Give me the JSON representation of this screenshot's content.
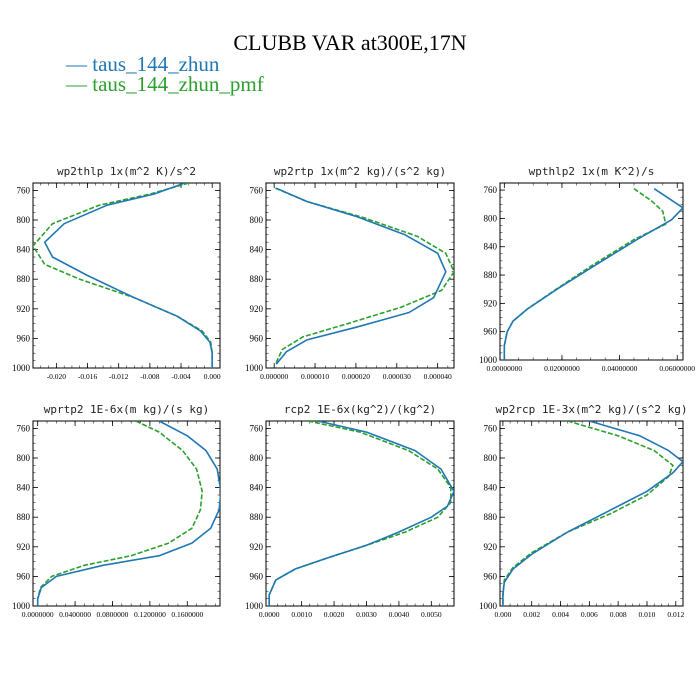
{
  "title": "CLUBB VAR at300E,17N",
  "legend": [
    {
      "label": "— taus_144_zhun",
      "color": "#1f77b4"
    },
    {
      "label": "— taus_144_zhun_pmf",
      "color": "#2ca02c"
    }
  ],
  "colors": {
    "series1": "#1f77b4",
    "series2": "#2ca02c"
  },
  "chart_data": [
    {
      "type": "line",
      "title": "wp2thlp  1x(m^2 K)/s^2",
      "xlim": [
        -0.023,
        0.001
      ],
      "ylim": [
        750,
        1000
      ],
      "y_inverted": true,
      "xticks": [
        -0.02,
        -0.016,
        -0.012,
        -0.008,
        -0.004,
        0.0
      ],
      "xtick_labels": [
        "-0.020",
        "-0.016",
        "-0.012",
        "-0.008",
        "-0.004",
        "0.000"
      ],
      "yticks": [
        760,
        800,
        840,
        880,
        920,
        960,
        1000
      ],
      "ytick_labels": [
        "760",
        "800",
        "840",
        "880",
        "920",
        "960",
        "1000"
      ],
      "series": [
        {
          "name": "taus_144_zhun",
          "style": "solid",
          "color": "#1f77b4",
          "points": [
            [
              -0.0035,
              750
            ],
            [
              -0.0075,
              765
            ],
            [
              -0.0135,
              780
            ],
            [
              -0.019,
              805
            ],
            [
              -0.0215,
              830
            ],
            [
              -0.0205,
              850
            ],
            [
              -0.016,
              875
            ],
            [
              -0.01,
              905
            ],
            [
              -0.0045,
              930
            ],
            [
              -0.0015,
              950
            ],
            [
              -0.0003,
              965
            ],
            [
              0.0,
              980
            ],
            [
              0.0,
              1000
            ]
          ]
        },
        {
          "name": "taus_144_zhun_pmf",
          "style": "dashed",
          "color": "#2ca02c",
          "points": [
            [
              -0.003,
              750
            ],
            [
              -0.008,
              765
            ],
            [
              -0.0145,
              780
            ],
            [
              -0.0205,
              805
            ],
            [
              -0.023,
              835
            ],
            [
              -0.0215,
              860
            ],
            [
              -0.017,
              880
            ],
            [
              -0.01,
              905
            ],
            [
              -0.0045,
              930
            ],
            [
              -0.0013,
              950
            ],
            [
              -0.0002,
              965
            ],
            [
              0.0,
              980
            ],
            [
              0.0,
              1000
            ]
          ]
        }
      ]
    },
    {
      "type": "line",
      "title": "wp2rtp  1x(m^2 kg)/(s^2 kg)",
      "xlim": [
        -2e-06,
        4.4e-05
      ],
      "ylim": [
        750,
        1000
      ],
      "y_inverted": true,
      "xticks": [
        0.0,
        1e-05,
        2e-05,
        3e-05,
        4e-05
      ],
      "xtick_labels": [
        "0.000000",
        "0.000010",
        "0.000020",
        "0.000030",
        "0.000040"
      ],
      "yticks": [
        760,
        800,
        840,
        880,
        920,
        960,
        1000
      ],
      "ytick_labels": [
        "760",
        "800",
        "840",
        "880",
        "920",
        "960",
        "1000"
      ],
      "series": [
        {
          "name": "taus_144_zhun",
          "style": "solid",
          "color": "#1f77b4",
          "points": [
            [
              5e-07,
              757
            ],
            [
              8e-06,
              775
            ],
            [
              2e-05,
              795
            ],
            [
              3.2e-05,
              820
            ],
            [
              4e-05,
              845
            ],
            [
              4.2e-05,
              870
            ],
            [
              3.9e-05,
              905
            ],
            [
              3.3e-05,
              925
            ],
            [
              2e-05,
              945
            ],
            [
              8e-06,
              962
            ],
            [
              3e-06,
              978
            ],
            [
              5e-07,
              995
            ]
          ]
        },
        {
          "name": "taus_144_zhun_pmf",
          "style": "dashed",
          "color": "#2ca02c",
          "points": [
            [
              3e-07,
              757
            ],
            [
              8e-06,
              775
            ],
            [
              2.2e-05,
              797
            ],
            [
              3.5e-05,
              822
            ],
            [
              4.2e-05,
              845
            ],
            [
              4.4e-05,
              870
            ],
            [
              4.1e-05,
              895
            ],
            [
              3.1e-05,
              918
            ],
            [
              1.8e-05,
              940
            ],
            [
              7e-06,
              958
            ],
            [
              2e-06,
              975
            ],
            [
              3e-07,
              995
            ]
          ]
        }
      ]
    },
    {
      "type": "line",
      "title": "wpthlp2  1x(m K^2)/s",
      "xlim": [
        -0.0015,
        0.062
      ],
      "ylim": [
        750,
        1000
      ],
      "y_inverted": true,
      "xticks": [
        0.0,
        0.02,
        0.04,
        0.06
      ],
      "xtick_labels": [
        "0.00000000",
        "0.02000000",
        "0.04000000",
        "0.06000000"
      ],
      "yticks": [
        760,
        800,
        840,
        880,
        920,
        960,
        1000
      ],
      "ytick_labels": [
        "760",
        "800",
        "840",
        "880",
        "920",
        "960",
        "1000"
      ],
      "series": [
        {
          "name": "taus_144_zhun",
          "style": "solid",
          "color": "#1f77b4",
          "points": [
            [
              0.052,
              758
            ],
            [
              0.062,
              785
            ],
            [
              0.058,
              802
            ],
            [
              0.046,
              830
            ],
            [
              0.032,
              865
            ],
            [
              0.019,
              898
            ],
            [
              0.008,
              928
            ],
            [
              0.003,
              945
            ],
            [
              0.001,
              960
            ],
            [
              0.0,
              980
            ],
            [
              0.0,
              1000
            ]
          ]
        },
        {
          "name": "taus_144_zhun_pmf",
          "style": "dashed",
          "color": "#2ca02c",
          "points": [
            [
              0.045,
              758
            ],
            [
              0.051,
              775
            ],
            [
              0.055,
              790
            ],
            [
              0.056,
              808
            ],
            [
              0.045,
              830
            ],
            [
              0.031,
              865
            ],
            [
              0.018,
              900
            ],
            [
              0.008,
              928
            ],
            [
              0.003,
              945
            ],
            [
              0.001,
              960
            ],
            [
              0.0,
              980
            ],
            [
              0.0,
              1000
            ]
          ]
        }
      ]
    },
    {
      "type": "line",
      "title": "wprtp2  1E-6x(m kg)/(s kg)",
      "xlim": [
        -0.005,
        0.195
      ],
      "ylim": [
        750,
        1000
      ],
      "y_inverted": true,
      "xticks": [
        0.0,
        0.04,
        0.08,
        0.12,
        0.16
      ],
      "xtick_labels": [
        "0.0000000",
        "0.0400000",
        "0.0800000",
        "0.1200000",
        "0.1600000"
      ],
      "yticks": [
        760,
        800,
        840,
        880,
        920,
        960,
        1000
      ],
      "ytick_labels": [
        "760",
        "800",
        "840",
        "880",
        "920",
        "960",
        "1000"
      ],
      "series": [
        {
          "name": "taus_144_zhun",
          "style": "solid",
          "color": "#1f77b4",
          "points": [
            [
              0.13,
              750
            ],
            [
              0.16,
              770
            ],
            [
              0.18,
              790
            ],
            [
              0.192,
              815
            ],
            [
              0.196,
              845
            ],
            [
              0.194,
              870
            ],
            [
              0.185,
              895
            ],
            [
              0.165,
              915
            ],
            [
              0.13,
              932
            ],
            [
              0.07,
              945
            ],
            [
              0.02,
              960
            ],
            [
              0.004,
              975
            ],
            [
              0.0,
              990
            ],
            [
              0.0,
              1000
            ]
          ]
        },
        {
          "name": "taus_144_zhun_pmf",
          "style": "dashed",
          "color": "#2ca02c",
          "points": [
            [
              0.105,
              750
            ],
            [
              0.13,
              765
            ],
            [
              0.155,
              790
            ],
            [
              0.17,
              815
            ],
            [
              0.176,
              845
            ],
            [
              0.174,
              870
            ],
            [
              0.165,
              895
            ],
            [
              0.14,
              915
            ],
            [
              0.1,
              932
            ],
            [
              0.05,
              945
            ],
            [
              0.015,
              960
            ],
            [
              0.003,
              975
            ],
            [
              0.0,
              990
            ],
            [
              0.0,
              1000
            ]
          ]
        }
      ]
    },
    {
      "type": "line",
      "title": "rcp2  1E-6x(kg^2)/(kg^2)",
      "xlim": [
        -0.0001,
        0.0057
      ],
      "ylim": [
        750,
        1000
      ],
      "y_inverted": true,
      "xticks": [
        0.0,
        0.001,
        0.002,
        0.003,
        0.004,
        0.005
      ],
      "xtick_labels": [
        "0.0000",
        "0.0010",
        "0.0020",
        "0.0030",
        "0.0040",
        "0.0050"
      ],
      "yticks": [
        760,
        800,
        840,
        880,
        920,
        960,
        1000
      ],
      "ytick_labels": [
        "760",
        "800",
        "840",
        "880",
        "920",
        "960",
        "1000"
      ],
      "series": [
        {
          "name": "taus_144_zhun",
          "style": "solid",
          "color": "#1f77b4",
          "points": [
            [
              0.0015,
              750
            ],
            [
              0.003,
              765
            ],
            [
              0.0045,
              790
            ],
            [
              0.0053,
              815
            ],
            [
              0.0057,
              845
            ],
            [
              0.0055,
              865
            ],
            [
              0.005,
              880
            ],
            [
              0.004,
              900
            ],
            [
              0.003,
              918
            ],
            [
              0.0018,
              935
            ],
            [
              0.0008,
              950
            ],
            [
              0.0002,
              965
            ],
            [
              0.0,
              985
            ],
            [
              0.0,
              1000
            ]
          ]
        },
        {
          "name": "taus_144_zhun_pmf",
          "style": "dashed",
          "color": "#2ca02c",
          "points": [
            [
              0.0012,
              750
            ],
            [
              0.0028,
              765
            ],
            [
              0.0043,
              790
            ],
            [
              0.0052,
              815
            ],
            [
              0.0056,
              840
            ],
            [
              0.0056,
              860
            ],
            [
              0.0052,
              880
            ],
            [
              0.0042,
              900
            ],
            [
              0.003,
              918
            ],
            [
              0.0018,
              935
            ],
            [
              0.0008,
              950
            ],
            [
              0.0002,
              965
            ],
            [
              0.0,
              985
            ],
            [
              0.0,
              1000
            ]
          ]
        }
      ]
    },
    {
      "type": "line",
      "title": "wp2rcp  1E-3x(m^2 kg)/(s^2 kg)",
      "xlim": [
        -0.0002,
        0.0125
      ],
      "ylim": [
        750,
        1000
      ],
      "y_inverted": true,
      "xticks": [
        0.0,
        0.002,
        0.004,
        0.006,
        0.008,
        0.01,
        0.012
      ],
      "xtick_labels": [
        "0.000",
        "0.002",
        "0.004",
        "0.006",
        "0.008",
        "0.010",
        "0.012"
      ],
      "yticks": [
        760,
        800,
        840,
        880,
        920,
        960,
        1000
      ],
      "ytick_labels": [
        "760",
        "800",
        "840",
        "880",
        "920",
        "960",
        "1000"
      ],
      "series": [
        {
          "name": "taus_144_zhun",
          "style": "solid",
          "color": "#1f77b4",
          "points": [
            [
              0.006,
              750
            ],
            [
              0.0095,
              770
            ],
            [
              0.0115,
              790
            ],
            [
              0.0125,
              805
            ],
            [
              0.0118,
              820
            ],
            [
              0.01,
              845
            ],
            [
              0.0075,
              870
            ],
            [
              0.0045,
              900
            ],
            [
              0.002,
              930
            ],
            [
              0.0007,
              950
            ],
            [
              0.0001,
              968
            ],
            [
              0.0,
              985
            ],
            [
              0.0,
              1000
            ]
          ]
        },
        {
          "name": "taus_144_zhun_pmf",
          "style": "dashed",
          "color": "#2ca02c",
          "points": [
            [
              0.0045,
              750
            ],
            [
              0.008,
              770
            ],
            [
              0.0105,
              790
            ],
            [
              0.0118,
              810
            ],
            [
              0.0115,
              825
            ],
            [
              0.01,
              850
            ],
            [
              0.0075,
              875
            ],
            [
              0.0045,
              900
            ],
            [
              0.002,
              928
            ],
            [
              0.0007,
              948
            ],
            [
              0.0001,
              965
            ],
            [
              0.0,
              985
            ],
            [
              0.0,
              1000
            ]
          ]
        }
      ]
    }
  ]
}
